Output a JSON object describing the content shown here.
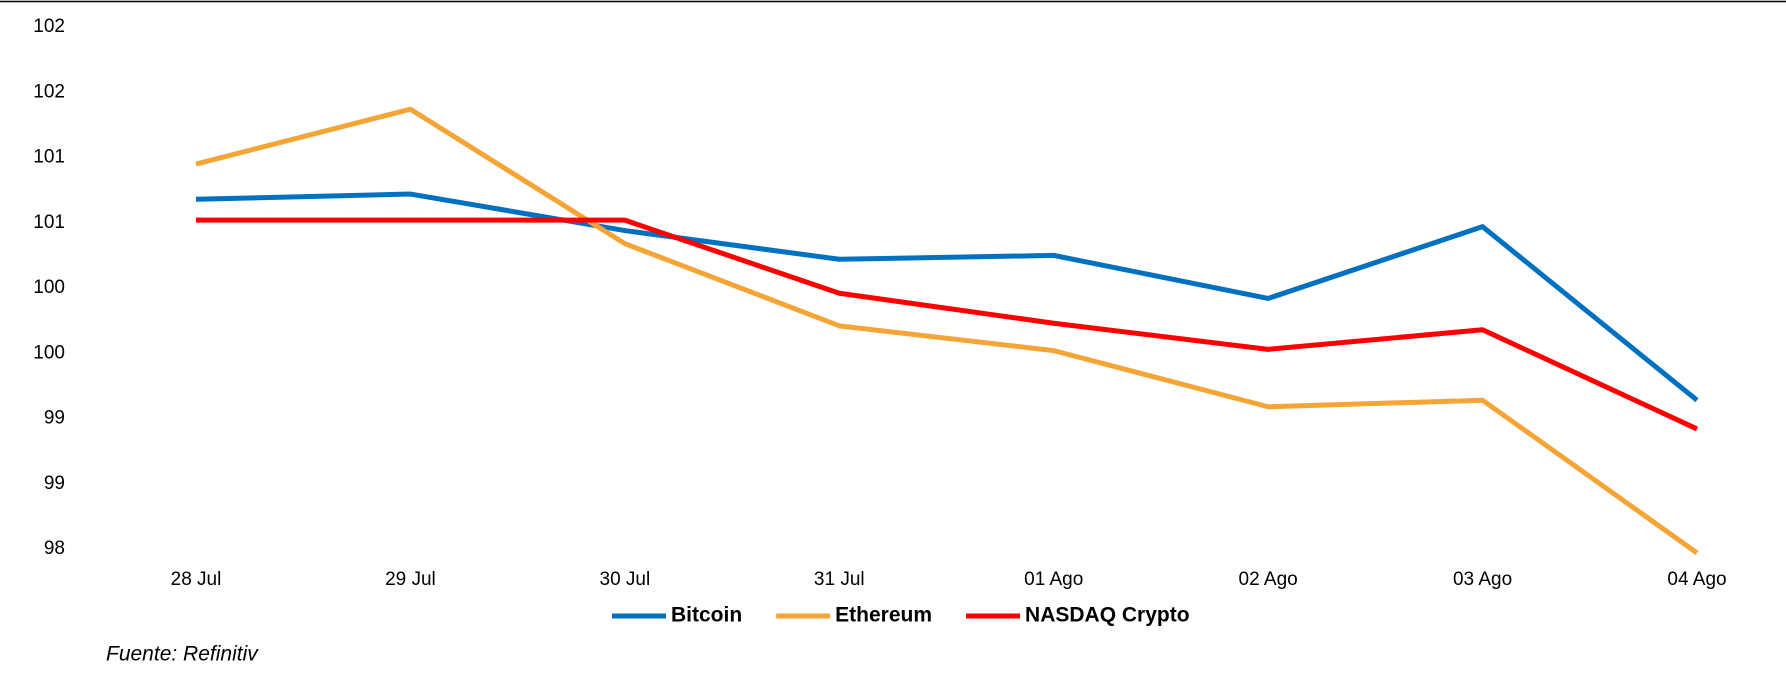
{
  "chart_data": {
    "type": "line",
    "categories": [
      "28 Jul",
      "29 Jul",
      "30 Jul",
      "31 Jul",
      "01 Ago",
      "02 Ago",
      "03 Ago",
      "04 Ago"
    ],
    "series": [
      {
        "name": "Bitcoin",
        "color": "#0070c0",
        "values": [
          100.68,
          100.72,
          100.44,
          100.22,
          100.25,
          99.92,
          100.47,
          99.14
        ]
      },
      {
        "name": "Ethereum",
        "color": "#f5a536",
        "values": [
          100.95,
          101.37,
          100.34,
          99.71,
          99.52,
          99.09,
          99.14,
          97.97
        ]
      },
      {
        "name": "NASDAQ Crypto",
        "color": "#ff0000",
        "values": [
          100.52,
          100.52,
          100.52,
          99.96,
          99.73,
          99.53,
          99.68,
          98.92
        ]
      }
    ],
    "ylim": [
      98,
      102
    ],
    "yticks": [
      98,
      {
        "value": 98.5,
        "label": "99"
      },
      99,
      {
        "value": 99.5,
        "label": "100"
      },
      100,
      {
        "value": 100.5,
        "label": "101"
      },
      101,
      {
        "value": 101.5,
        "label": "102"
      },
      102
    ],
    "grid": false,
    "legend": "bottom",
    "source": "Fuente: Refinitiv"
  }
}
